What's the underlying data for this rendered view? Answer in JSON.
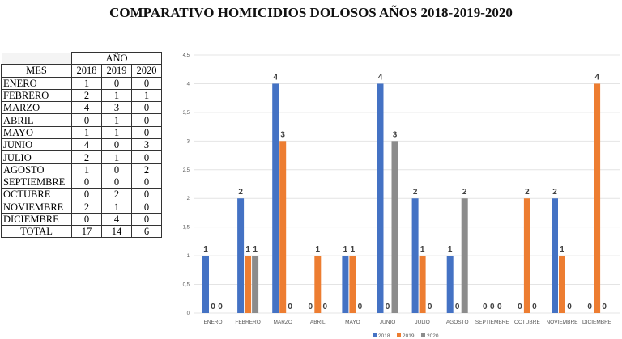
{
  "title": "COMPARATIVO HOMICIDIOS DOLOSOS  AÑOS 2018-2019-2020",
  "table": {
    "year_header": "AÑO",
    "month_header": "MES",
    "years": [
      "2018",
      "2019",
      "2020"
    ],
    "rows": [
      {
        "mes": "ENERO",
        "v": [
          "1",
          "0",
          "0"
        ]
      },
      {
        "mes": "FEBRERO",
        "v": [
          "2",
          "1",
          "1"
        ]
      },
      {
        "mes": "MARZO",
        "v": [
          "4",
          "3",
          "0"
        ]
      },
      {
        "mes": "ABRIL",
        "v": [
          "0",
          "1",
          "0"
        ]
      },
      {
        "mes": "MAYO",
        "v": [
          "1",
          "1",
          "0"
        ]
      },
      {
        "mes": "JUNIO",
        "v": [
          "4",
          "0",
          "3"
        ]
      },
      {
        "mes": "JULIO",
        "v": [
          "2",
          "1",
          "0"
        ]
      },
      {
        "mes": "AGOSTO",
        "v": [
          "1",
          "0",
          "2"
        ]
      },
      {
        "mes": "SEPTIEMBRE",
        "v": [
          "0",
          "0",
          "0"
        ]
      },
      {
        "mes": "OCTUBRE",
        "v": [
          "0",
          "2",
          "0"
        ]
      },
      {
        "mes": "NOVIEMBRE",
        "v": [
          "2",
          "1",
          "0"
        ]
      },
      {
        "mes": "DICIEMBRE",
        "v": [
          "0",
          "4",
          "0"
        ]
      }
    ],
    "total": {
      "label": "TOTAL",
      "v": [
        "17",
        "14",
        "6"
      ]
    }
  },
  "chart_data": {
    "type": "bar",
    "categories": [
      "ENERO",
      "FEBRERO",
      "MARZO",
      "ABRIL",
      "MAYO",
      "JUNIO",
      "JULIO",
      "AGOSTO",
      "SEPTIEMBRE",
      "OCTUBRE",
      "NOVIEMBRE",
      "DICIEMBRE"
    ],
    "series": [
      {
        "name": "2018",
        "color": "#4472c4",
        "values": [
          1,
          2,
          4,
          0,
          1,
          4,
          2,
          1,
          0,
          0,
          2,
          0
        ]
      },
      {
        "name": "2019",
        "color": "#ed7d31",
        "values": [
          0,
          1,
          3,
          1,
          1,
          0,
          1,
          0,
          0,
          2,
          1,
          4
        ]
      },
      {
        "name": "2020",
        "color": "#8c8c8c",
        "values": [
          0,
          1,
          0,
          0,
          0,
          3,
          0,
          2,
          0,
          0,
          0,
          0
        ]
      }
    ],
    "yticks": [
      "0",
      "0,5",
      "1",
      "1,5",
      "2",
      "2,5",
      "3",
      "3,5",
      "4",
      "4,5"
    ],
    "ylim": [
      0,
      4.5
    ],
    "grid": true,
    "legend": "bottom"
  }
}
